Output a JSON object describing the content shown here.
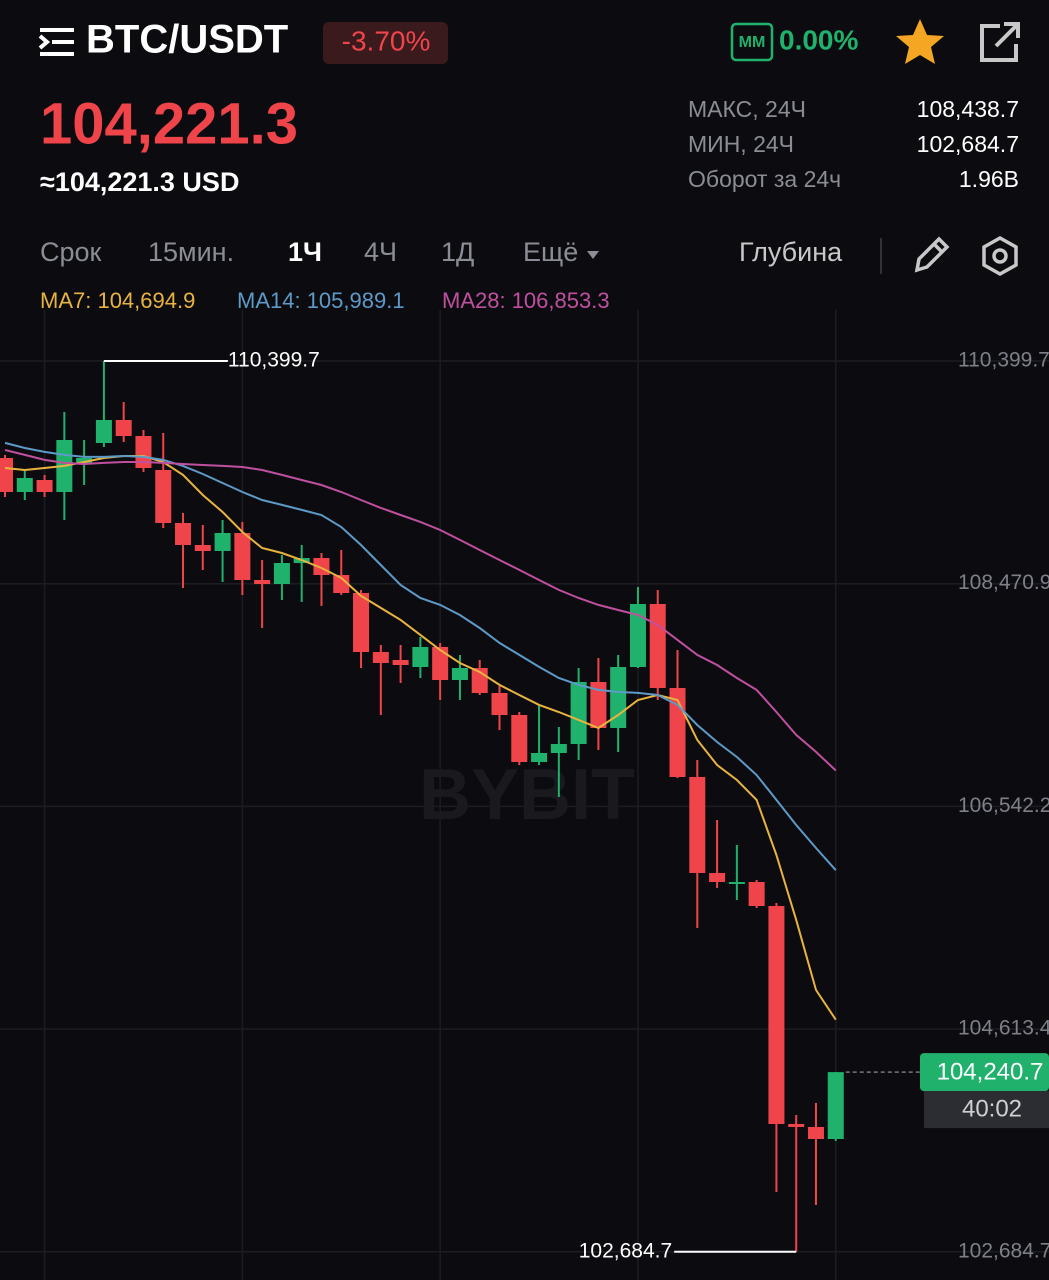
{
  "header": {
    "pair": "BTC/USDT",
    "change": "-3.70%",
    "mm": "MM",
    "mm_value": "0.00%"
  },
  "price": {
    "last": "104,221.3",
    "usd": "≈104,221.3 USD"
  },
  "stats": [
    {
      "label": "МАКС, 24Ч",
      "value": "108,438.7"
    },
    {
      "label": "МИН, 24Ч",
      "value": "102,684.7"
    },
    {
      "label": "Оборот за 24ч",
      "value": "1.96B"
    }
  ],
  "toolbar": {
    "items": [
      "Срок",
      "15мин.",
      "1Ч",
      "4Ч",
      "1Д",
      "Ещё"
    ],
    "depth": "Глубина"
  },
  "chart_data": {
    "type": "candlestick",
    "watermark": "BYBIT",
    "up_color": "#20b26c",
    "down_color": "#ef454a",
    "open": [
      109559.6,
      109265.1,
      109369.0,
      109265.1,
      109507.6,
      109689.5,
      109888.7,
      109750.1,
      109455.7,
      108996.6,
      108806.1,
      108754.1,
      108910.0,
      108502.9,
      108468.3,
      108650.2,
      108693.5,
      108546.2,
      108390.3,
      107879.3,
      107810.1,
      107749.4,
      107922.7,
      107636.8,
      107740.8,
      107524.2,
      107333.7,
      106926.6,
      107004.6,
      107082.5,
      107619.5,
      107221.1,
      107749.4,
      108295.1,
      107567.6,
      106796.7,
      105965.3,
      105870.0,
      105887.3,
      105679.5,
      103791.4,
      103765.4,
      103661.4
    ],
    "high": [
      109585.6,
      109455.7,
      109412.3,
      109958.0,
      109715.5,
      110399.7,
      110044.6,
      109802.1,
      109776.1,
      109083.2,
      108979.3,
      109022.6,
      109005.3,
      108676.2,
      108719.5,
      108806.1,
      108736.8,
      108762.8,
      108416.3,
      107940.0,
      107940.0,
      108009.3,
      107957.3,
      107853.4,
      107810.1,
      107584.9,
      107359.7,
      107420.3,
      107229.8,
      107740.8,
      107827.4,
      107853.4,
      108442.3,
      108416.3,
      107896.7,
      106944.0,
      106424.3,
      106207.8,
      105904.6,
      105705.4,
      103869.3,
      103973.2,
      104240.7
    ],
    "low": [
      109221.8,
      109195.8,
      109221.8,
      109022.6,
      109325.7,
      109654.9,
      109698.2,
      109438.3,
      108953.3,
      108433.7,
      108589.6,
      108485.6,
      108373.0,
      108087.2,
      108329.7,
      108312.4,
      108277.8,
      108373.0,
      107740.8,
      107333.7,
      107610.9,
      107654.2,
      107463.6,
      107463.6,
      107506.9,
      107203.8,
      106900.7,
      106900.7,
      106623.5,
      106944.0,
      107030.6,
      107013.2,
      107740.8,
      107463.6,
      106788.1,
      105488.9,
      105835.4,
      105731.4,
      105662.1,
      103202.4,
      102684.7,
      103089.8,
      103644.1
    ],
    "close": [
      109265.1,
      109386.4,
      109265.1,
      109715.5,
      109559.6,
      109888.7,
      109750.1,
      109473.0,
      108996.6,
      108806.1,
      108754.1,
      108910.0,
      108502.9,
      108468.3,
      108650.2,
      108693.5,
      108546.2,
      108390.3,
      107879.3,
      107784.1,
      107766.8,
      107922.7,
      107636.8,
      107740.8,
      107524.2,
      107333.7,
      106926.6,
      107004.6,
      107082.5,
      107619.5,
      107221.1,
      107749.4,
      108295.1,
      107567.6,
      106796.7,
      105965.3,
      105887.3,
      105887.3,
      105679.5,
      103791.4,
      103765.4,
      103661.4,
      104240.7
    ],
    "series": [
      {
        "name": "MA7: 104,694.9",
        "color": "#e8b33f",
        "values": [
          109473,
          109456,
          109473,
          109491,
          109525,
          109560,
          109577,
          109577,
          109525,
          109413,
          109239,
          109092,
          108919,
          108780,
          108737,
          108676,
          108607,
          108521,
          108365,
          108261,
          108157,
          108027,
          107897,
          107784,
          107706,
          107594,
          107507,
          107421,
          107360,
          107291,
          107221,
          107334,
          107464,
          107507,
          107464,
          107117,
          106901,
          106771,
          106598,
          106121,
          105559,
          104952,
          104694.9
        ]
      },
      {
        "name": "MA14: 105,989.1",
        "color": "#5d9ac8",
        "values": [
          109690,
          109646,
          109612,
          109586,
          109569,
          109569,
          109577,
          109569,
          109543,
          109491,
          109421,
          109343,
          109265,
          109196,
          109153,
          109110,
          109066,
          108962,
          108806,
          108633,
          108460,
          108347,
          108287,
          108200,
          108087,
          107958,
          107854,
          107750,
          107654,
          107594,
          107551,
          107533,
          107525,
          107507,
          107421,
          107247,
          107100,
          106970,
          106814,
          106598,
          106381,
          106182,
          105989.1
        ]
      },
      {
        "name": "MA28: 106,853.3",
        "color": "#c0509f",
        "values": [
          109629,
          109586,
          109543,
          109517,
          109508,
          109517,
          109525,
          109525,
          109517,
          109508,
          109499,
          109491,
          109482,
          109456,
          109413,
          109369,
          109326,
          109265,
          109196,
          109127,
          109066,
          109006,
          108936,
          108850,
          108763,
          108676,
          108590,
          108503,
          108417,
          108347,
          108287,
          108243,
          108200,
          108113,
          107984,
          107854,
          107767,
          107654,
          107551,
          107360,
          107161,
          107014,
          106853.3
        ]
      }
    ],
    "ylim": [
      102440.2,
      110841.4
    ],
    "yticks": [
      {
        "value": 110399.7,
        "label": "110,399.7"
      },
      {
        "value": 108470.95,
        "label": "108,470.9"
      },
      {
        "value": 106542.2,
        "label": "106,542.2"
      },
      {
        "value": 104613.45,
        "label": "104,613.4"
      },
      {
        "value": 102684.7,
        "label": "102,684.7"
      }
    ],
    "grid": true,
    "max_label": "110,399.7",
    "min_label": "102,684.7",
    "last_price": {
      "value": 104240.7,
      "label": "104,240.7"
    },
    "countdown": "40:02"
  }
}
